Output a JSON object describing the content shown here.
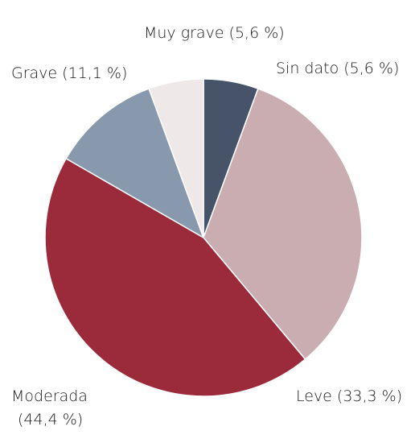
{
  "chart_data": {
    "type": "pie",
    "slices": [
      {
        "name": "Sin dato",
        "value": 5.6,
        "label": "Sin dato (5,6 %)",
        "color": "#465369"
      },
      {
        "name": "Leve",
        "value": 33.3,
        "label": "Leve (33,3 %)",
        "color": "#c9adb0"
      },
      {
        "name": "Moderada",
        "value": 44.4,
        "label_lines": [
          "Moderada",
          "(44,4 %)"
        ],
        "color": "#9b2a3a"
      },
      {
        "name": "Grave",
        "value": 11.1,
        "label": "Grave (11,1 %)",
        "color": "#8898ad"
      },
      {
        "name": "Muy grave",
        "value": 5.6,
        "label": "Muy grave (5,6 %)",
        "color": "#efe8e9"
      }
    ],
    "start_angle_deg": 0,
    "direction": "clockwise"
  }
}
